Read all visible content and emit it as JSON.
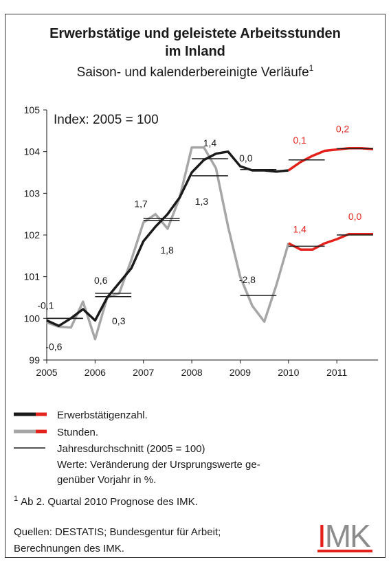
{
  "chart_data": {
    "type": "line",
    "title": [
      "Erwerbstätige und geleistete Arbeitsstunden",
      "im Inland"
    ],
    "subtitle": "Saison- und kalenderbereinigte Verläufe",
    "subtitle_footnote_mark": "1",
    "annotation": "Index: 2005 = 100",
    "x": [
      2005,
      2005.25,
      2005.5,
      2005.75,
      2006,
      2006.25,
      2006.5,
      2006.75,
      2007,
      2007.25,
      2007.5,
      2007.75,
      2008,
      2008.25,
      2008.5,
      2008.75,
      2009,
      2009.25,
      2009.5,
      2009.75,
      2010,
      2010.25,
      2010.5,
      2010.75,
      2011,
      2011.25,
      2011.5,
      2011.75
    ],
    "forecast_start": 2010,
    "forecast_color": "#e3231b",
    "series": [
      {
        "name": "Erwerbstätigenzahl.",
        "color": "#1a1a1a",
        "values": [
          99.95,
          99.82,
          100.0,
          100.22,
          99.95,
          100.5,
          100.85,
          101.2,
          101.85,
          102.2,
          102.5,
          102.9,
          103.5,
          103.8,
          103.95,
          104.0,
          103.65,
          103.55,
          103.55,
          103.52,
          103.55,
          103.75,
          103.9,
          104.02,
          104.05,
          104.08,
          104.08,
          104.06
        ],
        "annual_values": [
          100.0,
          100.6,
          102.4,
          103.83,
          103.57,
          103.8,
          104.07
        ],
        "annual_labels": [
          "-0,1",
          "0,6",
          "1,7",
          "1,4",
          "0,0",
          "0,1",
          "0,2"
        ]
      },
      {
        "name": "Stunden.",
        "color": "#a6a6a6",
        "values": [
          99.9,
          99.8,
          99.78,
          100.4,
          99.5,
          100.5,
          100.6,
          101.4,
          102.3,
          102.5,
          102.15,
          102.9,
          104.1,
          104.1,
          103.6,
          102.2,
          101.0,
          100.3,
          99.92,
          100.8,
          101.8,
          101.65,
          101.65,
          101.8,
          101.9,
          102.02,
          102.02,
          102.02
        ],
        "annual_values": [
          100.0,
          100.52,
          102.35,
          103.42,
          100.55,
          101.73,
          102.0
        ],
        "annual_labels": [
          "-0,6",
          "0,3",
          "1,8",
          "1,3",
          "-2,8",
          "1,4",
          "0,0"
        ]
      }
    ],
    "annual_x": [
      2005,
      2006,
      2007,
      2008,
      2009,
      2010,
      2011
    ],
    "annual_legend": "Jahresdurchschnitt (2005 = 100)",
    "annual_note": [
      "Werte: Veränderung der Ursprungswerte ge-",
      "genüber Vorjahr in %."
    ],
    "xlim": [
      2005,
      2011.85
    ],
    "xticks": [
      2005,
      2006,
      2007,
      2008,
      2009,
      2010,
      2011
    ],
    "ylim": [
      99,
      105
    ],
    "yticks": [
      99,
      100,
      101,
      102,
      103,
      104,
      105
    ],
    "footnote": {
      "mark": "1",
      "text": "Ab 2. Quartal 2010 Prognose des IMK."
    },
    "sources": [
      "Quellen: DESTATIS; Bundesgentur für Arbeit;",
      "Berechnungen des IMK."
    ],
    "logo": "IMK"
  }
}
